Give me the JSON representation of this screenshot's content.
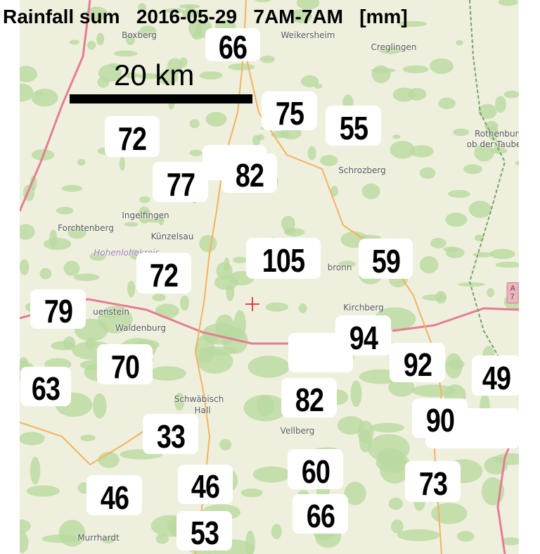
{
  "title": "Rainfall sum   2016-05-29   7AM-7AM   [mm]",
  "scale_bar": {
    "label": "20 km"
  },
  "marker": {
    "icon": "red-crosshair-icon",
    "color": "#e0101a"
  },
  "colors": {
    "map_base": "#eef0dd",
    "forest": "#b9d9a0",
    "motorway": "#e77b95",
    "primary_road": "#f4b25e",
    "label_box": "#ffffff"
  },
  "towns": [
    "Boxberg",
    "Weikersheim",
    "Creglingen",
    "Rothenburg",
    "ob der Tauber",
    "Schrozberg",
    "Ingelfingen",
    "Forchtenberg",
    "Künzelsau",
    "Hohenlohekreis",
    "bronn",
    "Kirchberg",
    "uenstein",
    "Waldenburg",
    "Schwäbisch",
    "Hall",
    "Vellberg",
    "Murrhardt"
  ],
  "road_shield": "A 7",
  "stations": [
    {
      "value": "66"
    },
    {
      "value": "75"
    },
    {
      "value": "55"
    },
    {
      "value": "72"
    },
    {
      "value": "82"
    },
    {
      "value": "77"
    },
    {
      "value": "105"
    },
    {
      "value": "59"
    },
    {
      "value": "72"
    },
    {
      "value": "79"
    },
    {
      "value": "94"
    },
    {
      "value": "92"
    },
    {
      "value": "49"
    },
    {
      "value": "70"
    },
    {
      "value": "63"
    },
    {
      "value": "82"
    },
    {
      "value": "90"
    },
    {
      "value": "33"
    },
    {
      "value": "60"
    },
    {
      "value": "73"
    },
    {
      "value": "46"
    },
    {
      "value": "46"
    },
    {
      "value": "53"
    },
    {
      "value": "66"
    }
  ]
}
